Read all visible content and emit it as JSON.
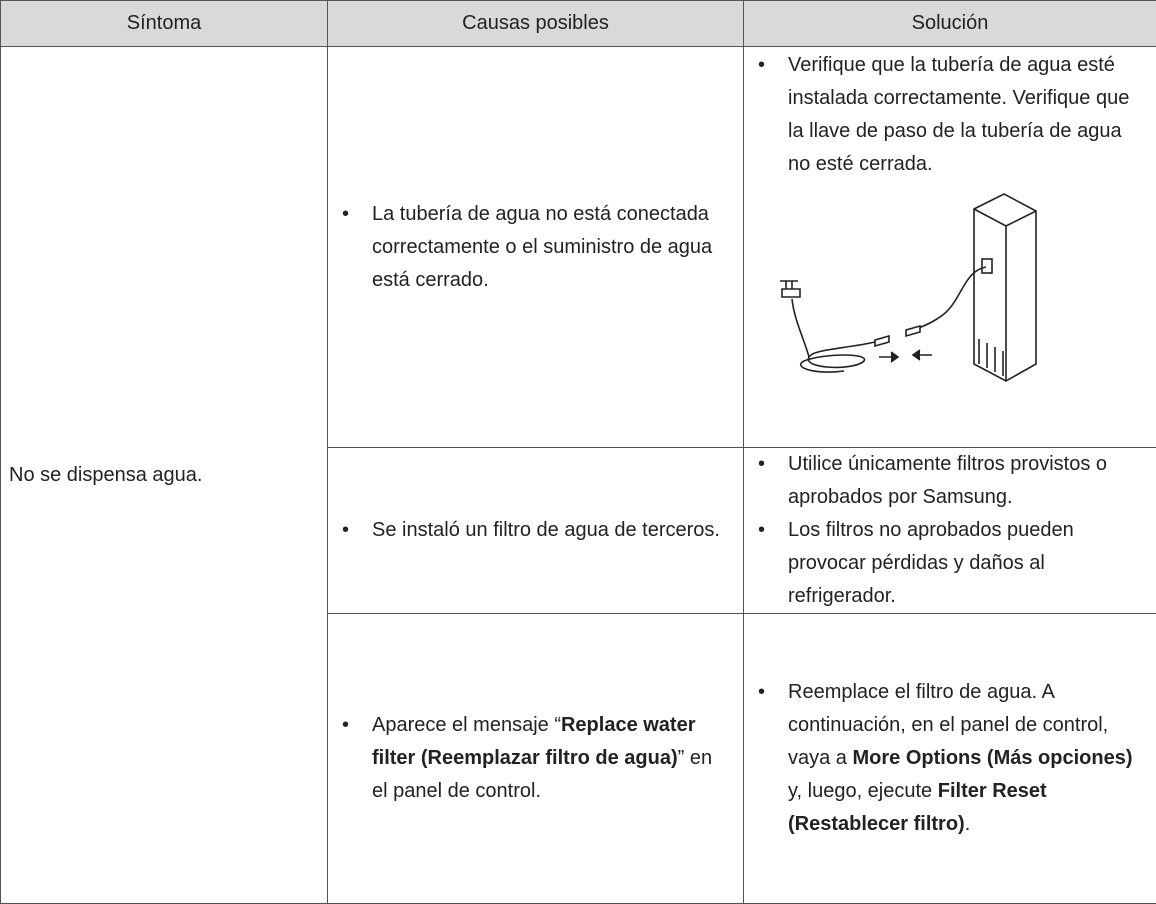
{
  "header": {
    "cells": [
      "Síntoma",
      "Causas posibles",
      "Solución"
    ]
  },
  "table": {
    "symptom": "No se dispensa agua.",
    "rows": [
      {
        "cause": [
          "La tubería de agua no está conectada correctamente o el suministro de agua está cerrado."
        ],
        "solution": [
          [
            "Verifique que la tubería de agua esté instalada correctamente. Verifique que la llave de paso de la tubería de agua no esté cerrada."
          ]
        ]
      },
      {
        "cause": [
          "Se instaló un filtro de agua de terceros."
        ],
        "solution": [
          [
            "Utilice únicamente filtros provistos o aprobados por Samsung."
          ],
          [
            "Los filtros no aprobados pueden provocar pérdidas y daños al refrigerador."
          ]
        ]
      },
      {
        "cause": [
          "Aparece el mensaje “",
          "Replace water filter (Reemplazar filtro de agua)",
          "” en el panel de control."
        ],
        "solution": [
          [
            "Reemplace el filtro de agua. A continuación, en el panel de control, vaya a ",
            "More Options (Más opciones)",
            " y, luego, ejecute ",
            "Filter Reset (Restablecer filtro)",
            "."
          ]
        ]
      }
    ]
  }
}
